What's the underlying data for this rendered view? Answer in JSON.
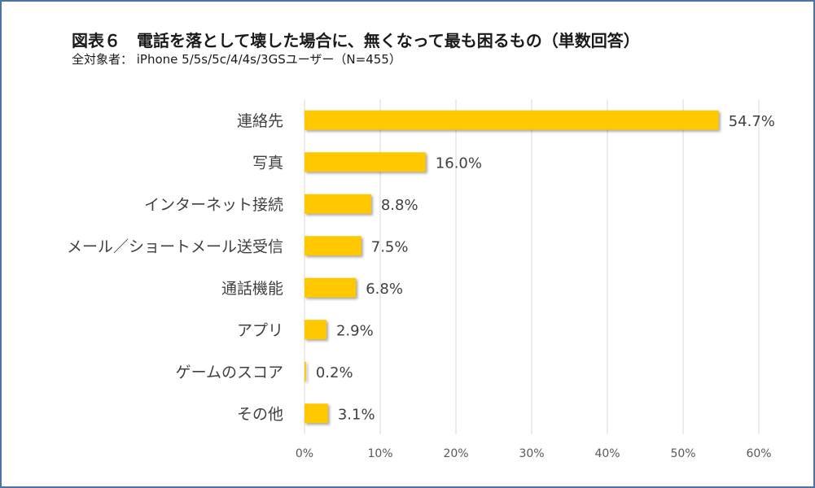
{
  "header": {
    "title": "図表６　電話を落として壊した場合に、無くなって最も困るもの（単数回答）",
    "subtitle": "全対象者：  iPhone 5/5s/5c/4/4s/3GSユーザー（N=455）"
  },
  "colors": {
    "bar": "#ffc800",
    "border": "#4a73a8",
    "grid": "#d9d9d9"
  },
  "chart_data": {
    "type": "bar",
    "orientation": "horizontal",
    "categories": [
      "連絡先",
      "写真",
      "インターネット接続",
      "メール／ショートメール送受信",
      "通話機能",
      "アプリ",
      "ゲームのスコア",
      "その他"
    ],
    "values": [
      54.7,
      16.0,
      8.8,
      7.5,
      6.8,
      2.9,
      0.2,
      3.1
    ],
    "value_labels": [
      "54.7%",
      "16.0%",
      "8.8%",
      "7.5%",
      "6.8%",
      "2.9%",
      "0.2%",
      "3.1%"
    ],
    "xlim": [
      0,
      60
    ],
    "xticks": [
      0,
      10,
      20,
      30,
      40,
      50,
      60
    ],
    "xtick_labels": [
      "0%",
      "10%",
      "20%",
      "30%",
      "40%",
      "50%",
      "60%"
    ],
    "grid": true,
    "legend": "none"
  }
}
